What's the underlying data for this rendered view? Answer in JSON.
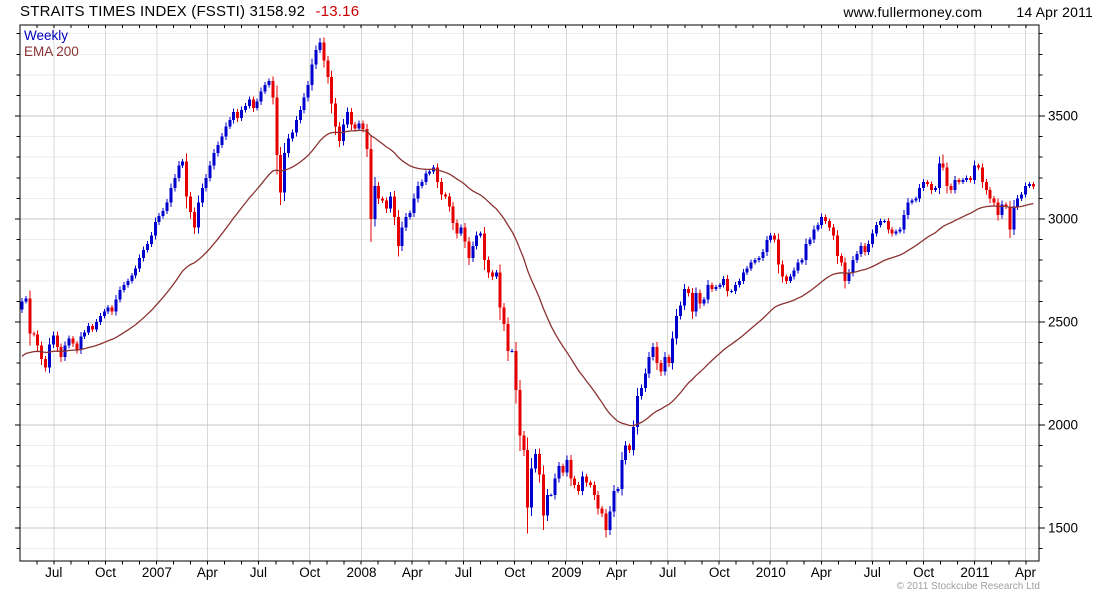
{
  "header": {
    "title": "STRAITS TIMES INDEX (FSSTI) 3158.92",
    "change": "-13.16",
    "site": "www.fullermoney.com",
    "date": "14 Apr 2011"
  },
  "legend": {
    "weekly": "Weekly",
    "ema": "EMA 200"
  },
  "footer": {
    "copyright": "© 2011 Stockcube Research Ltd"
  },
  "colors": {
    "up_candle": "#0000CE",
    "down_candle": "#E60000",
    "ema_line": "#8B3333",
    "change_text": "#CC0000",
    "legend_weekly": "#0000BE",
    "copyright_text": "#A0A0A0",
    "grid_minor": "#ECECEC",
    "grid_major": "#C4C4C4",
    "grid_vertical": "#D8D8D8",
    "axis": "#000000"
  },
  "chart_data": {
    "type": "candlestick",
    "instrument": "STRAITS TIMES INDEX (FSSTI)",
    "interval": "weekly",
    "last_close": 3158.92,
    "change": -13.16,
    "overlay": "EMA 200",
    "date_range": "May 2006 - 14 Apr 2011",
    "ylim": [
      1340,
      3942
    ],
    "y_ticks_labeled": [
      1500,
      2000,
      2500,
      3000,
      3500
    ],
    "y_minor_step": 100,
    "grid": true,
    "legend_position": "top-left",
    "x_axis_labels": [
      {
        "label": "Jul",
        "week": 8.1
      },
      {
        "label": "Oct",
        "week": 21.3
      },
      {
        "label": "2007",
        "week": 34.4
      },
      {
        "label": "Apr",
        "week": 47.3
      },
      {
        "label": "Jul",
        "week": 60.3
      },
      {
        "label": "Oct",
        "week": 73.4
      },
      {
        "label": "2008",
        "week": 86.6
      },
      {
        "label": "Apr",
        "week": 99.6
      },
      {
        "label": "Jul",
        "week": 112.6
      },
      {
        "label": "Oct",
        "week": 125.7
      },
      {
        "label": "2009",
        "week": 138.9
      },
      {
        "label": "Apr",
        "week": 151.7
      },
      {
        "label": "Jul",
        "week": 164.7
      },
      {
        "label": "Oct",
        "week": 177.9
      },
      {
        "label": "2010",
        "week": 191.0
      },
      {
        "label": "Apr",
        "week": 203.9
      },
      {
        "label": "Jul",
        "week": 216.9
      },
      {
        "label": "Oct",
        "week": 230.0
      },
      {
        "label": "2011",
        "week": 243.1
      },
      {
        "label": "Apr",
        "week": 256.0
      }
    ],
    "first_open": 2560,
    "closes": [
      2600,
      2615,
      2445,
      2440,
      2385,
      2320,
      2280,
      2390,
      2435,
      2380,
      2330,
      2385,
      2420,
      2395,
      2365,
      2430,
      2450,
      2480,
      2465,
      2500,
      2530,
      2550,
      2570,
      2550,
      2610,
      2655,
      2680,
      2700,
      2725,
      2760,
      2810,
      2850,
      2880,
      2920,
      2985,
      3015,
      3040,
      3080,
      3150,
      3200,
      3260,
      3280,
      3110,
      3035,
      2960,
      3080,
      3150,
      3200,
      3260,
      3320,
      3360,
      3400,
      3450,
      3480,
      3520,
      3490,
      3530,
      3550,
      3580,
      3540,
      3570,
      3620,
      3650,
      3670,
      3590,
      3310,
      3130,
      3320,
      3390,
      3420,
      3480,
      3530,
      3590,
      3650,
      3750,
      3820,
      3857,
      3770,
      3690,
      3560,
      3450,
      3380,
      3460,
      3520,
      3460,
      3440,
      3465,
      3437,
      3340,
      3000,
      3160,
      3100,
      3090,
      3050,
      3110,
      3010,
      2870,
      2960,
      3010,
      3030,
      3100,
      3160,
      3180,
      3220,
      3230,
      3250,
      3180,
      3120,
      3110,
      3060,
      2980,
      2930,
      2960,
      2890,
      2810,
      2870,
      2920,
      2930,
      2800,
      2740,
      2720,
      2740,
      2570,
      2490,
      2360,
      2360,
      2170,
      1950,
      1880,
      1600,
      1790,
      1860,
      1760,
      1560,
      1660,
      1660,
      1740,
      1800,
      1770,
      1830,
      1740,
      1710,
      1680,
      1750,
      1720,
      1710,
      1660,
      1595,
      1570,
      1490,
      1580,
      1680,
      1690,
      1830,
      1900,
      1880,
      1990,
      2140,
      2180,
      2250,
      2330,
      2380,
      2300,
      2260,
      2330,
      2300,
      2420,
      2530,
      2580,
      2660,
      2640,
      2550,
      2640,
      2590,
      2610,
      2680,
      2660,
      2670,
      2680,
      2710,
      2650,
      2650,
      2680,
      2700,
      2740,
      2760,
      2790,
      2800,
      2810,
      2840,
      2898,
      2920,
      2900,
      2780,
      2720,
      2700,
      2720,
      2750,
      2790,
      2800,
      2880,
      2900,
      2950,
      2970,
      3010,
      2990,
      2960,
      2920,
      2820,
      2790,
      2700,
      2740,
      2800,
      2830,
      2870,
      2840,
      2880,
      2930,
      2970,
      2990,
      2990,
      2950,
      2930,
      2940,
      2950,
      3020,
      3080,
      3090,
      3100,
      3150,
      3180,
      3170,
      3140,
      3150,
      3270,
      3250,
      3160,
      3140,
      3190,
      3180,
      3190,
      3200,
      3190,
      3260,
      3250,
      3180,
      3140,
      3100,
      3080,
      3020,
      3070,
      3060,
      2950,
      3060,
      3100,
      3120,
      3160,
      3170,
      3159
    ],
    "high_overrides": {
      "76": 3880,
      "235": 3313
    },
    "low_overrides": {
      "129": 1473,
      "149": 1455
    },
    "ema_period_weeks": 40,
    "ema_seed": 2320
  }
}
